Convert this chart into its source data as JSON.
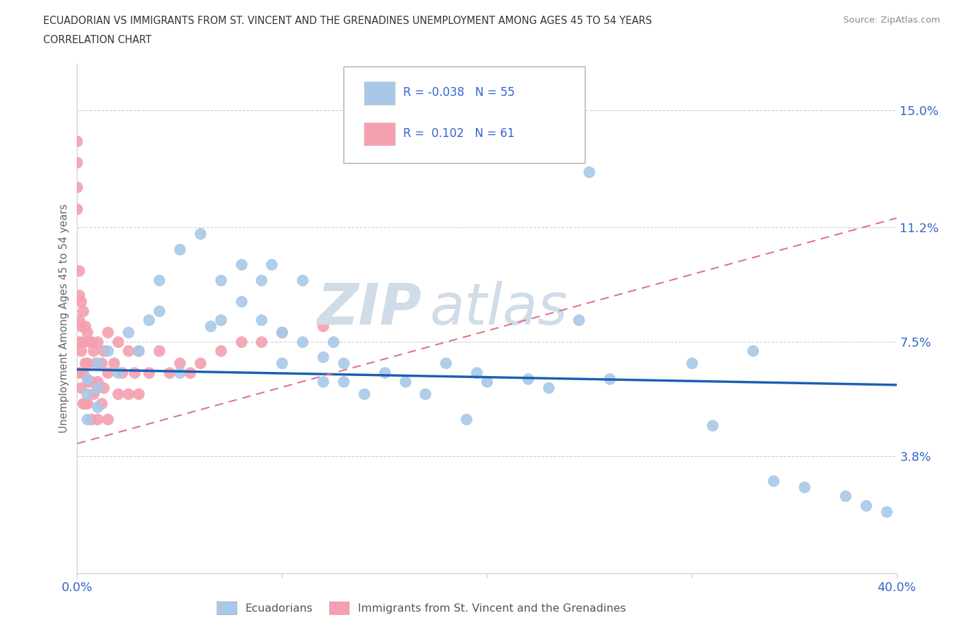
{
  "title_line1": "ECUADORIAN VS IMMIGRANTS FROM ST. VINCENT AND THE GRENADINES UNEMPLOYMENT AMONG AGES 45 TO 54 YEARS",
  "title_line2": "CORRELATION CHART",
  "source": "Source: ZipAtlas.com",
  "ylabel": "Unemployment Among Ages 45 to 54 years",
  "xlim": [
    0.0,
    0.4
  ],
  "ylim": [
    0.0,
    0.165
  ],
  "xticks": [
    0.0,
    0.1,
    0.2,
    0.3,
    0.4
  ],
  "xticklabels": [
    "0.0%",
    "",
    "",
    "",
    "40.0%"
  ],
  "ytick_positions": [
    0.038,
    0.075,
    0.112,
    0.15
  ],
  "ytick_labels": [
    "3.8%",
    "7.5%",
    "11.2%",
    "15.0%"
  ],
  "ecuadorians_R": -0.038,
  "ecuadorians_N": 55,
  "svg_R": 0.102,
  "svg_N": 61,
  "ecuadorian_color": "#a8c8e8",
  "svg_color": "#f4a0b0",
  "ecuadorian_line_color": "#1a5fb4",
  "svg_line_color": "#e07090",
  "background_color": "#ffffff",
  "watermark_text": "ZIP",
  "watermark_text2": "atlas",
  "ecuadorians_x": [
    0.005,
    0.005,
    0.005,
    0.01,
    0.01,
    0.01,
    0.015,
    0.02,
    0.025,
    0.03,
    0.035,
    0.04,
    0.04,
    0.05,
    0.05,
    0.06,
    0.065,
    0.07,
    0.07,
    0.08,
    0.08,
    0.09,
    0.09,
    0.095,
    0.1,
    0.1,
    0.11,
    0.11,
    0.12,
    0.12,
    0.125,
    0.13,
    0.13,
    0.14,
    0.15,
    0.16,
    0.17,
    0.18,
    0.19,
    0.195,
    0.2,
    0.21,
    0.22,
    0.23,
    0.245,
    0.25,
    0.26,
    0.3,
    0.31,
    0.33,
    0.34,
    0.355,
    0.375,
    0.385,
    0.395
  ],
  "ecuadorians_y": [
    0.063,
    0.058,
    0.05,
    0.068,
    0.06,
    0.054,
    0.072,
    0.065,
    0.078,
    0.072,
    0.082,
    0.095,
    0.085,
    0.105,
    0.065,
    0.11,
    0.08,
    0.095,
    0.082,
    0.1,
    0.088,
    0.095,
    0.082,
    0.1,
    0.068,
    0.078,
    0.095,
    0.075,
    0.07,
    0.062,
    0.075,
    0.068,
    0.062,
    0.058,
    0.065,
    0.062,
    0.058,
    0.068,
    0.05,
    0.065,
    0.062,
    0.135,
    0.063,
    0.06,
    0.082,
    0.13,
    0.063,
    0.068,
    0.048,
    0.072,
    0.03,
    0.028,
    0.025,
    0.022,
    0.02
  ],
  "svg_x": [
    0.0,
    0.0,
    0.0,
    0.0,
    0.001,
    0.001,
    0.001,
    0.001,
    0.001,
    0.002,
    0.002,
    0.002,
    0.002,
    0.003,
    0.003,
    0.003,
    0.003,
    0.004,
    0.004,
    0.004,
    0.005,
    0.005,
    0.005,
    0.006,
    0.006,
    0.007,
    0.007,
    0.007,
    0.008,
    0.008,
    0.009,
    0.01,
    0.01,
    0.01,
    0.012,
    0.012,
    0.013,
    0.013,
    0.015,
    0.015,
    0.015,
    0.018,
    0.02,
    0.02,
    0.022,
    0.025,
    0.025,
    0.028,
    0.03,
    0.03,
    0.035,
    0.04,
    0.045,
    0.05,
    0.055,
    0.06,
    0.07,
    0.08,
    0.09,
    0.1,
    0.12
  ],
  "svg_y": [
    0.14,
    0.133,
    0.125,
    0.118,
    0.098,
    0.09,
    0.082,
    0.075,
    0.065,
    0.088,
    0.08,
    0.072,
    0.06,
    0.085,
    0.075,
    0.065,
    0.055,
    0.08,
    0.068,
    0.055,
    0.078,
    0.068,
    0.055,
    0.075,
    0.062,
    0.075,
    0.062,
    0.05,
    0.072,
    0.058,
    0.068,
    0.075,
    0.062,
    0.05,
    0.068,
    0.055,
    0.072,
    0.06,
    0.078,
    0.065,
    0.05,
    0.068,
    0.075,
    0.058,
    0.065,
    0.072,
    0.058,
    0.065,
    0.072,
    0.058,
    0.065,
    0.072,
    0.065,
    0.068,
    0.065,
    0.068,
    0.072,
    0.075,
    0.075,
    0.078,
    0.08
  ],
  "ecu_trend_x0": 0.0,
  "ecu_trend_x1": 0.4,
  "ecu_trend_y0": 0.066,
  "ecu_trend_y1": 0.061,
  "svg_trend_x0": 0.0,
  "svg_trend_x1": 0.4,
  "svg_trend_y0": 0.042,
  "svg_trend_y1": 0.115
}
